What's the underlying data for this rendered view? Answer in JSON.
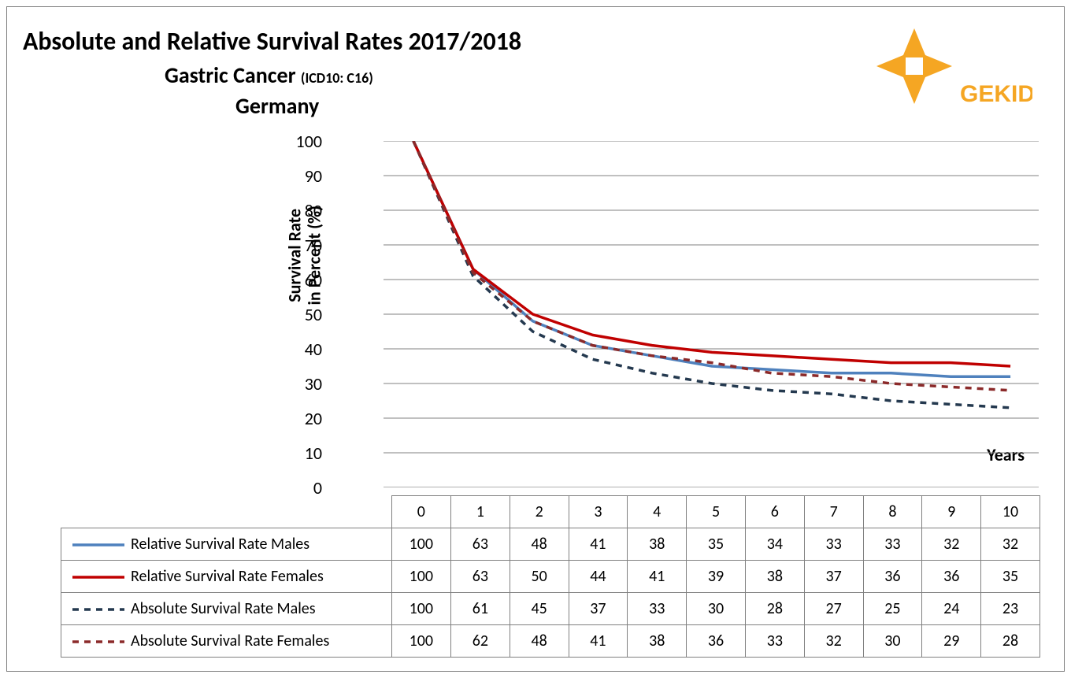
{
  "title": "Absolute and Relative Survival Rates 2017/2018",
  "subtitle_main": "Gastric Cancer ",
  "subtitle_icd": "(ICD10: C16)",
  "country": "Germany",
  "logo_text": "GEKID",
  "logo_color": "#f5a623",
  "ylabel_line1": "Survival Rate",
  "ylabel_line2": "in Percent (%)",
  "xlabel": "Years",
  "background_color": "#ffffff",
  "border_color": "#7f7f7f",
  "grid_color": "#808080",
  "tick_fontsize": 22,
  "label_fontsize": 22,
  "title_fontsize": 32,
  "ylim": [
    0,
    100
  ],
  "ytick_step": 10,
  "xvalues": [
    0,
    1,
    2,
    3,
    4,
    5,
    6,
    7,
    8,
    9,
    10
  ],
  "series": [
    {
      "key": "rel_m",
      "label": "Relative Survival Rate Males",
      "color": "#4f81bd",
      "dash": "none",
      "width": 3.5,
      "values": [
        100,
        63,
        48,
        41,
        38,
        35,
        34,
        33,
        33,
        32,
        32
      ]
    },
    {
      "key": "rel_f",
      "label": "Relative Survival Rate Females",
      "color": "#c00000",
      "dash": "none",
      "width": 3.5,
      "values": [
        100,
        63,
        50,
        44,
        41,
        39,
        38,
        37,
        36,
        36,
        35
      ]
    },
    {
      "key": "abs_m",
      "label": "Absolute Survival Rate Males",
      "color": "#24394f",
      "dash": "8,7",
      "width": 3.5,
      "values": [
        100,
        61,
        45,
        37,
        33,
        30,
        28,
        27,
        25,
        24,
        23
      ]
    },
    {
      "key": "abs_f",
      "label": "Absolute Survival Rate Females",
      "color": "#8b2a2a",
      "dash": "8,7",
      "width": 3.5,
      "values": [
        100,
        62,
        48,
        41,
        38,
        36,
        33,
        32,
        30,
        29,
        28
      ]
    }
  ]
}
